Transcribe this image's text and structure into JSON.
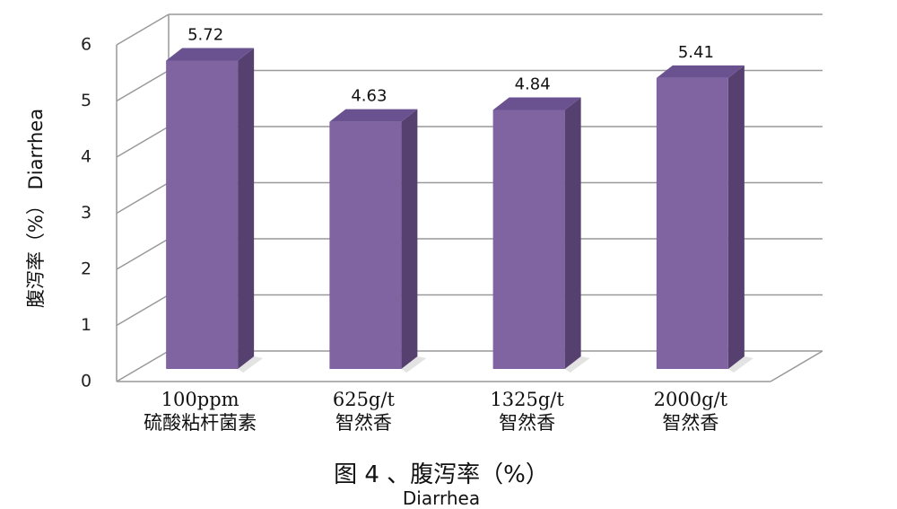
{
  "chart_data": {
    "type": "bar",
    "categories": [
      [
        "100ppm",
        "硫酸粘杆菌素"
      ],
      [
        "625g/t",
        "智然香"
      ],
      [
        "1325g/t",
        "智然香"
      ],
      [
        "2000g/t",
        "智然香"
      ]
    ],
    "values": [
      5.72,
      4.63,
      4.84,
      5.41
    ],
    "data_labels": [
      "5.72",
      "4.63",
      "4.84",
      "5.41"
    ],
    "y_ticks": [
      "0",
      "1",
      "2",
      "3",
      "4",
      "5",
      "6"
    ],
    "ylim": [
      0,
      6
    ],
    "grid": true,
    "ylabel": "腹泻率（%） Diarrhea",
    "caption": "图 4 、腹泻率（%）",
    "caption_en": "Diarrhea",
    "bar_color": "#8064a2",
    "bar_side_color": "#564070"
  }
}
